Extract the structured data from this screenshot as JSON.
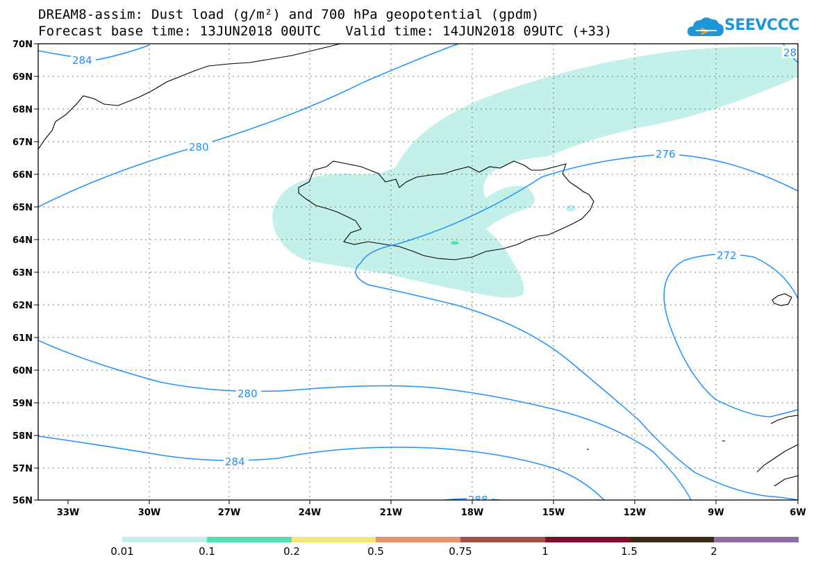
{
  "header": {
    "title_line1": "DREAM8-assim: Dust load (g/m²) and 700 hPa geopotential (gpdm)",
    "title_line2": "Forecast base time: 13JUN2018 00UTC   Valid time: 14JUN2018 09UTC (+33)"
  },
  "logo": {
    "text": "SEEVCCC",
    "icon": "cloud-icon",
    "color": "#1e96d8"
  },
  "map": {
    "lat_labels": [
      "70N",
      "69N",
      "68N",
      "67N",
      "66N",
      "65N",
      "64N",
      "63N",
      "62N",
      "61N",
      "60N",
      "59N",
      "58N",
      "57N",
      "56N"
    ],
    "lon_labels": [
      "33W",
      "30W",
      "27W",
      "24W",
      "21W",
      "18W",
      "15W",
      "12W",
      "9W",
      "6W"
    ],
    "contour_color": "#1e90ff",
    "dust_color": "#c4f0ea",
    "contour_labels": [
      "284",
      "280",
      "276",
      "272",
      "280",
      "284",
      "288",
      "28"
    ]
  },
  "legend": {
    "colors": [
      "#c4f0ea",
      "#55e0b2",
      "#f5e87a",
      "#e8926e",
      "#a5524b",
      "#7e0f2b",
      "#3e2a12",
      "#8f6ca0"
    ],
    "labels": [
      "0.01",
      "0.1",
      "0.2",
      "0.5",
      "0.75",
      "1",
      "1.5",
      "2"
    ]
  }
}
